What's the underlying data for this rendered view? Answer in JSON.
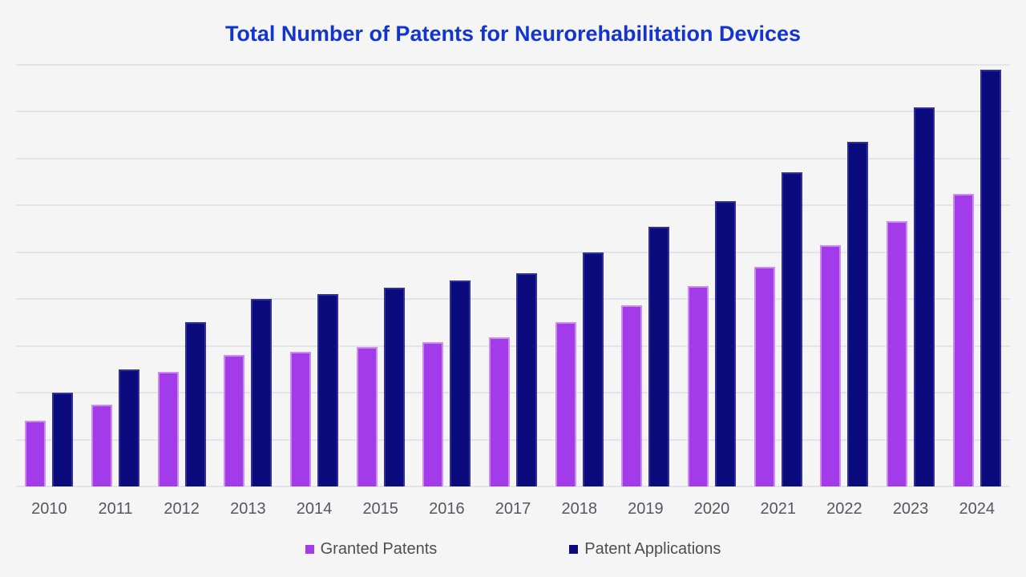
{
  "colors": {
    "background": "#f5f5f6",
    "title": "#1434d2",
    "gridline": "#e4e4e7",
    "axis_label": "#57575b",
    "legend_text": "#4e4e4e"
  },
  "chart_data": {
    "type": "bar",
    "title": "Total Number of Patents for Neurorehabilitation Devices",
    "categories": [
      "2010",
      "2011",
      "2012",
      "2013",
      "2014",
      "2015",
      "2016",
      "2017",
      "2018",
      "2019",
      "2020",
      "2021",
      "2022",
      "2023",
      "2024"
    ],
    "series": [
      {
        "name": "Granted Patents",
        "color": "#a43bea",
        "border_color": "#c98cf2",
        "values": [
          140,
          175,
          245,
          280,
          287,
          297,
          308,
          319,
          351,
          387,
          427,
          469,
          515,
          567,
          624
        ]
      },
      {
        "name": "Patent Applications",
        "color": "#0b0b7d",
        "border_color": "#30309c",
        "values": [
          200,
          250,
          350,
          400,
          410,
          425,
          440,
          455,
          500,
          555,
          610,
          670,
          735,
          810,
          890
        ]
      }
    ],
    "xlabel": "",
    "ylabel": "",
    "ylim": [
      0,
      900
    ],
    "y_gridline_step": 100,
    "grid": "horizontal-only",
    "y_axis_tick_labels_visible": false,
    "legend_position": "bottom"
  }
}
